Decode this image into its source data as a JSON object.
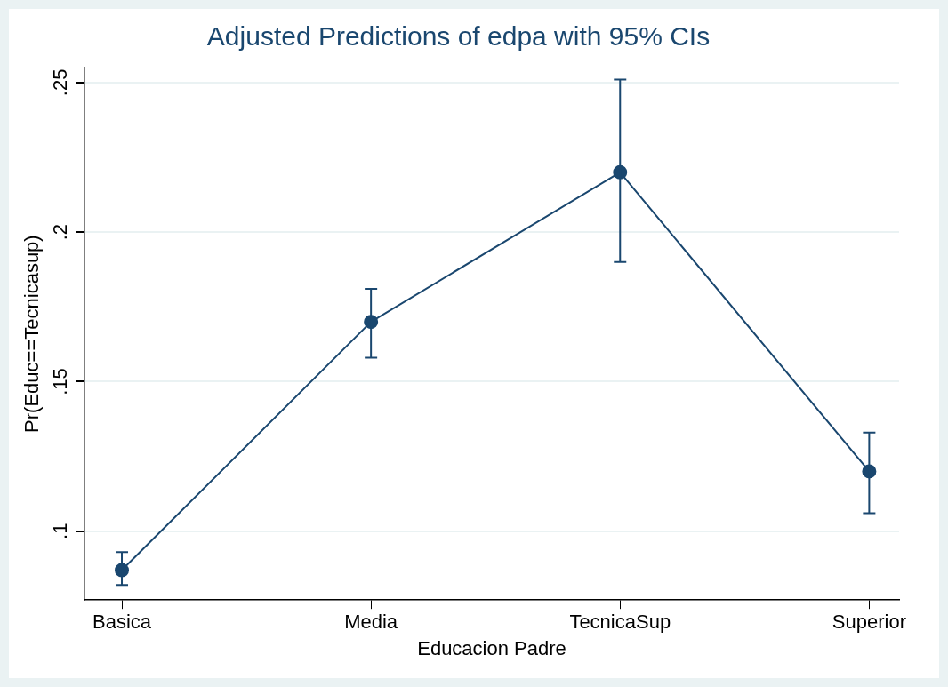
{
  "chart_data": {
    "type": "line",
    "title": "Adjusted Predictions of edpa with 95% CIs",
    "xlabel": "Educacion Padre",
    "ylabel": "Pr(Educ==Tecnicasup)",
    "categories": [
      "Basica",
      "Media",
      "TecnicaSup",
      "Superior"
    ],
    "ylim": [
      0.077,
      0.255
    ],
    "yticks": [
      {
        "value": 0.1,
        "label": ".1"
      },
      {
        "value": 0.15,
        "label": ".15"
      },
      {
        "value": 0.2,
        "label": ".2"
      },
      {
        "value": 0.25,
        "label": ".25"
      }
    ],
    "series": [
      {
        "color": "#1a476f",
        "values": [
          0.087,
          0.17,
          0.22,
          0.12
        ],
        "errors": [
          [
            0.082,
            0.093
          ],
          [
            0.158,
            0.181
          ],
          [
            0.19,
            0.251
          ],
          [
            0.106,
            0.133
          ]
        ]
      }
    ],
    "grid": "y",
    "legend": false,
    "marker": "circle",
    "line_style": "solid"
  }
}
